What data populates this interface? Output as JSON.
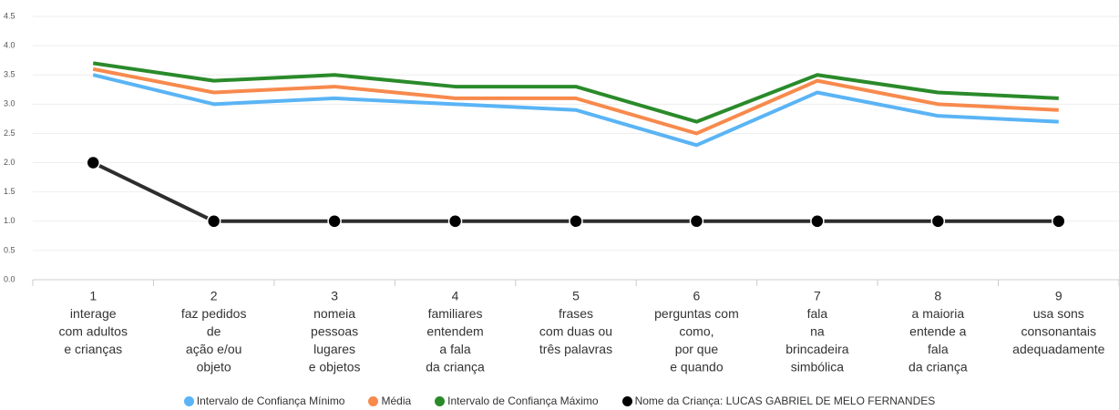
{
  "chart_data": {
    "type": "line",
    "categories": [
      [
        "1",
        "interage",
        "com adultos",
        "e crianças"
      ],
      [
        "2",
        "faz pedidos",
        "de",
        "ação e/ou",
        "objeto"
      ],
      [
        "3",
        "nomeia",
        "pessoas",
        "lugares",
        "e objetos"
      ],
      [
        "4",
        "familiares",
        "entendem",
        "a fala",
        "da criança"
      ],
      [
        "5",
        "frases",
        "com duas ou",
        "três palavras"
      ],
      [
        "6",
        "perguntas com",
        "como,",
        "por que",
        "e quando"
      ],
      [
        "7",
        "fala",
        "na",
        "brincadeira",
        "simbólica"
      ],
      [
        "8",
        "a maioria",
        "entende a",
        "fala",
        "da criança"
      ],
      [
        "9",
        "usa sons",
        "consonantais",
        "adequadamente"
      ]
    ],
    "series": [
      {
        "name": "Intervalo de Confiança Mínimo",
        "color": "#5ab4f5",
        "values": [
          3.5,
          3.0,
          3.1,
          3.0,
          2.9,
          2.3,
          3.2,
          2.8,
          2.7
        ]
      },
      {
        "name": "Média",
        "color": "#f78a4d",
        "values": [
          3.6,
          3.2,
          3.3,
          3.1,
          3.1,
          2.5,
          3.4,
          3.0,
          2.9
        ]
      },
      {
        "name": "Intervalo de Confiança Máximo",
        "color": "#2a8a2a",
        "values": [
          3.7,
          3.4,
          3.5,
          3.3,
          3.3,
          2.7,
          3.5,
          3.2,
          3.1
        ]
      },
      {
        "name": "Nome da Criança: LUCAS GABRIEL DE MELO FERNANDES",
        "color": "#000000",
        "line_color": "#2d2d2d",
        "markers": true,
        "values": [
          2,
          1,
          1,
          1,
          1,
          1,
          1,
          1,
          1
        ]
      }
    ],
    "ylim": [
      0,
      4.5
    ],
    "yticks": [
      {
        "value": 0,
        "label": "0.0"
      },
      0.5,
      {
        "value": 1,
        "label": "1.0"
      },
      1.5,
      {
        "value": 2,
        "label": "2.0"
      },
      2.5,
      {
        "value": 3,
        "label": "3.0"
      },
      3.5,
      {
        "value": 4,
        "label": "4.0"
      },
      4.5
    ],
    "grid": true
  }
}
